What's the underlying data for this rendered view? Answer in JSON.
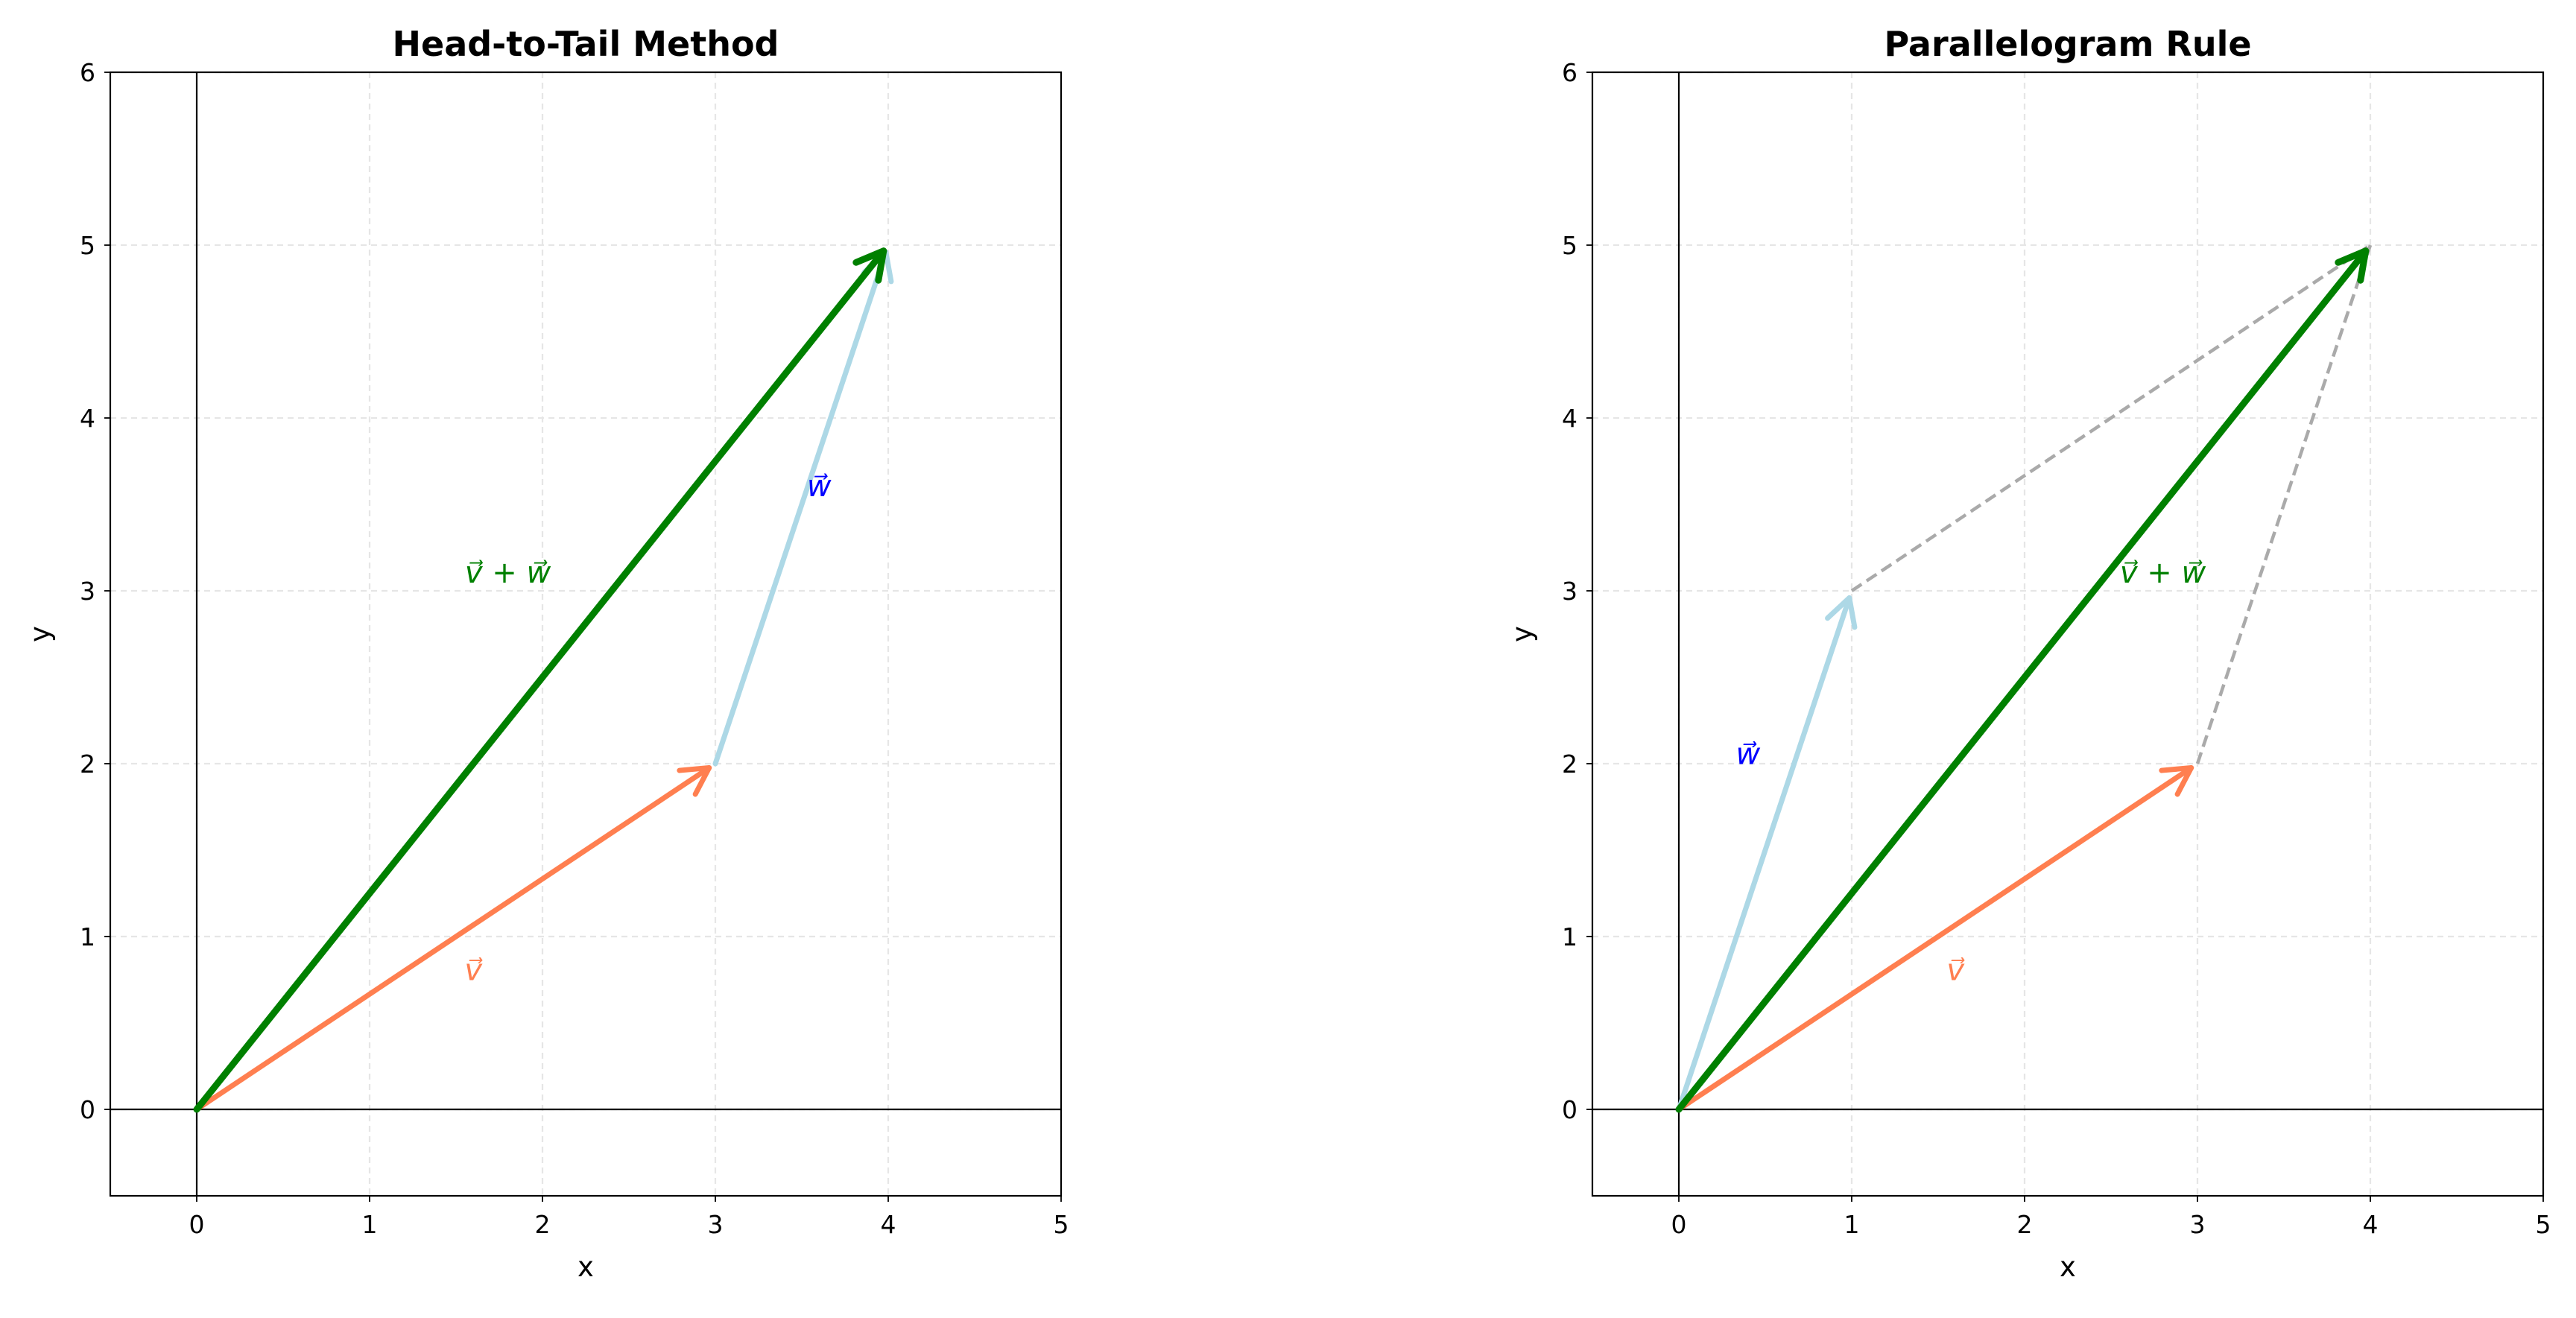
{
  "chart_data": [
    {
      "type": "line",
      "title": "Head-to-Tail Method",
      "xlabel": "x",
      "ylabel": "y",
      "xlim": [
        -0.5,
        5
      ],
      "ylim": [
        -0.5,
        6
      ],
      "xticks": [
        "0",
        "1",
        "2",
        "3",
        "4",
        "5"
      ],
      "yticks": [
        "0",
        "1",
        "2",
        "3",
        "4",
        "5",
        "6"
      ],
      "grid": true,
      "vectors": [
        {
          "name": "v",
          "label": "v⃗",
          "from": [
            0,
            0
          ],
          "to": [
            3,
            2
          ],
          "color": "#FF7F50",
          "label_at": [
            1.6,
            0.8
          ]
        },
        {
          "name": "w",
          "label": "w⃗",
          "from": [
            3,
            2
          ],
          "to": [
            4,
            5
          ],
          "color": "#ADD8E6",
          "label_color": "#0000FF",
          "label_at": [
            3.6,
            3.6
          ]
        },
        {
          "name": "v-plus-w",
          "label": "v⃗ + w⃗",
          "from": [
            0,
            0
          ],
          "to": [
            4,
            5
          ],
          "color": "#008000",
          "label_at": [
            1.8,
            3.1
          ]
        }
      ],
      "dashed_lines": []
    },
    {
      "type": "line",
      "title": "Parallelogram Rule",
      "xlabel": "x",
      "ylabel": "y",
      "xlim": [
        -0.5,
        5
      ],
      "ylim": [
        -0.5,
        6
      ],
      "xticks": [
        "0",
        "1",
        "2",
        "3",
        "4",
        "5"
      ],
      "yticks": [
        "0",
        "1",
        "2",
        "3",
        "4",
        "5",
        "6"
      ],
      "grid": true,
      "vectors": [
        {
          "name": "v",
          "label": "v⃗",
          "from": [
            0,
            0
          ],
          "to": [
            3,
            2
          ],
          "color": "#FF7F50",
          "label_at": [
            1.6,
            0.8
          ]
        },
        {
          "name": "w",
          "label": "w⃗",
          "from": [
            0,
            0
          ],
          "to": [
            1,
            3
          ],
          "color": "#ADD8E6",
          "label_color": "#0000FF",
          "label_at": [
            0.4,
            2.05
          ]
        },
        {
          "name": "v-plus-w",
          "label": "v⃗ + w⃗",
          "from": [
            0,
            0
          ],
          "to": [
            4,
            5
          ],
          "color": "#008000",
          "label_at": [
            2.8,
            3.1
          ]
        }
      ],
      "dashed_lines": [
        {
          "from": [
            1,
            3
          ],
          "to": [
            4,
            5
          ],
          "color": "#AAAAAA"
        },
        {
          "from": [
            3,
            2
          ],
          "to": [
            4,
            5
          ],
          "color": "#AAAAAA"
        }
      ]
    }
  ]
}
